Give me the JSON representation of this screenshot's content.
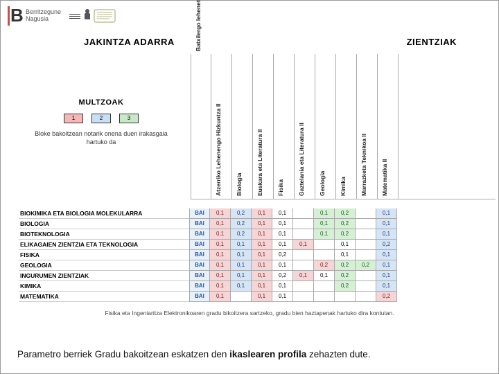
{
  "header": {
    "logo1_line1": "Berritzegune",
    "logo1_line2": "Nagusia"
  },
  "titles": {
    "left": "JAKINTZA ADARRA",
    "right": "ZIENTZIAK"
  },
  "multzoak": {
    "title": "MULTZOAK",
    "boxes": [
      "1",
      "2",
      "3"
    ],
    "note": "Bloke bakoitzean notarik onena duen irakasgaia hartuko da"
  },
  "col_headers": [
    "Batxilergo lehenetsia: ZIENTZIAK",
    "Atzerriko Lehenengo Hizkuntza II",
    "Biologia",
    "Euskara eta Literatura II",
    "Fisika",
    "Gaztelania eta Literatura II",
    "Geologia",
    "Kimika",
    "Marrazketa Teknikoa II",
    "Matematika II"
  ],
  "rows": [
    {
      "label": "BIOKIMIKA ETA BIOLOGIA MOLEKULARRA",
      "bai": "BAI",
      "cells": [
        {
          "v": "0,1",
          "c": "r"
        },
        {
          "v": "0,2",
          "c": "b"
        },
        {
          "v": "0,1",
          "c": "r"
        },
        {
          "v": "0,1",
          "c": ""
        },
        {
          "v": "",
          "c": ""
        },
        {
          "v": "0,1",
          "c": "g"
        },
        {
          "v": "0,2",
          "c": "g"
        },
        {
          "v": "",
          "c": ""
        },
        {
          "v": "0,1",
          "c": "b"
        }
      ]
    },
    {
      "label": "BIOLOGIA",
      "bai": "BAI",
      "cells": [
        {
          "v": "0,1",
          "c": "r"
        },
        {
          "v": "0,2",
          "c": "b"
        },
        {
          "v": "0,1",
          "c": "r"
        },
        {
          "v": "0,1",
          "c": ""
        },
        {
          "v": "",
          "c": ""
        },
        {
          "v": "0,1",
          "c": "g"
        },
        {
          "v": "0,2",
          "c": "g"
        },
        {
          "v": "",
          "c": ""
        },
        {
          "v": "0,1",
          "c": "b"
        }
      ]
    },
    {
      "label": "BIOTEKNOLOGIA",
      "bai": "BAI",
      "cells": [
        {
          "v": "0,1",
          "c": "r"
        },
        {
          "v": "0,2",
          "c": "b"
        },
        {
          "v": "0,1",
          "c": "r"
        },
        {
          "v": "0,1",
          "c": ""
        },
        {
          "v": "",
          "c": ""
        },
        {
          "v": "0,1",
          "c": "g"
        },
        {
          "v": "0,2",
          "c": "g"
        },
        {
          "v": "",
          "c": ""
        },
        {
          "v": "0,1",
          "c": "b"
        }
      ]
    },
    {
      "label": "ELIKAGAIEN ZIENTZIA ETA TEKNOLOGIA",
      "bai": "BAI",
      "cells": [
        {
          "v": "0,1",
          "c": "r"
        },
        {
          "v": "0,1",
          "c": "b"
        },
        {
          "v": "0,1",
          "c": "r"
        },
        {
          "v": "0,1",
          "c": ""
        },
        {
          "v": "0,1",
          "c": "r"
        },
        {
          "v": "",
          "c": ""
        },
        {
          "v": "0,1",
          "c": ""
        },
        {
          "v": "",
          "c": ""
        },
        {
          "v": "0,2",
          "c": "b"
        }
      ]
    },
    {
      "label": "FISIKA",
      "bai": "BAI",
      "cells": [
        {
          "v": "0,1",
          "c": "r"
        },
        {
          "v": "0,1",
          "c": "b"
        },
        {
          "v": "0,1",
          "c": "r"
        },
        {
          "v": "0,2",
          "c": ""
        },
        {
          "v": "",
          "c": ""
        },
        {
          "v": "",
          "c": ""
        },
        {
          "v": "0,1",
          "c": ""
        },
        {
          "v": "",
          "c": ""
        },
        {
          "v": "0,1",
          "c": "b"
        }
      ]
    },
    {
      "label": "GEOLOGIA",
      "bai": "BAI",
      "cells": [
        {
          "v": "0,1",
          "c": "r"
        },
        {
          "v": "0,1",
          "c": "b"
        },
        {
          "v": "0,1",
          "c": "r"
        },
        {
          "v": "0,1",
          "c": ""
        },
        {
          "v": "",
          "c": ""
        },
        {
          "v": "0,2",
          "c": "r"
        },
        {
          "v": "0,2",
          "c": "g"
        },
        {
          "v": "0,2",
          "c": "g"
        },
        {
          "v": "0,1",
          "c": "b"
        }
      ]
    },
    {
      "label": "INGURUMEN ZIENTZIAK",
      "bai": "BAI",
      "cells": [
        {
          "v": "0,1",
          "c": "r"
        },
        {
          "v": "0,1",
          "c": "b"
        },
        {
          "v": "0,1",
          "c": "r"
        },
        {
          "v": "0,2",
          "c": ""
        },
        {
          "v": "0,1",
          "c": "r"
        },
        {
          "v": "0,1",
          "c": ""
        },
        {
          "v": "0,2",
          "c": "g"
        },
        {
          "v": "",
          "c": ""
        },
        {
          "v": "0,1",
          "c": "b"
        }
      ]
    },
    {
      "label": "KIMIKA",
      "bai": "BAI",
      "cells": [
        {
          "v": "0,1",
          "c": "r"
        },
        {
          "v": "0,1",
          "c": "b"
        },
        {
          "v": "0,1",
          "c": "r"
        },
        {
          "v": "0,1",
          "c": ""
        },
        {
          "v": "",
          "c": ""
        },
        {
          "v": "",
          "c": ""
        },
        {
          "v": "0,2",
          "c": "g"
        },
        {
          "v": "",
          "c": ""
        },
        {
          "v": "0,1",
          "c": "b"
        }
      ]
    },
    {
      "label": "MATEMATIKA",
      "bai": "BAI",
      "cells": [
        {
          "v": "0,1",
          "c": "r"
        },
        {
          "v": "",
          "c": ""
        },
        {
          "v": "0,1",
          "c": "r"
        },
        {
          "v": "0,1",
          "c": ""
        },
        {
          "v": "",
          "c": ""
        },
        {
          "v": "",
          "c": ""
        },
        {
          "v": "",
          "c": ""
        },
        {
          "v": "",
          "c": ""
        },
        {
          "v": "0,2",
          "c": "r"
        }
      ]
    }
  ],
  "footnote": "Fisika eta Ingeniaritza Elektronikoaren gradu bikoitzera sartzeko, gradu bien haztapenak hartuko dira kontutan.",
  "caption": {
    "pre": "Parametro berriek Gradu bakoitzean eskatzen den ",
    "bold": "ikaslearen profila",
    "post": " zehazten dute."
  },
  "colors": {
    "box1": "#f5b8b8",
    "box2": "#c8dff5",
    "box3": "#c8e8c8",
    "cell_r": "#f5d5d5",
    "cell_b": "#d5e5f5",
    "cell_g": "#d5f0d5"
  }
}
